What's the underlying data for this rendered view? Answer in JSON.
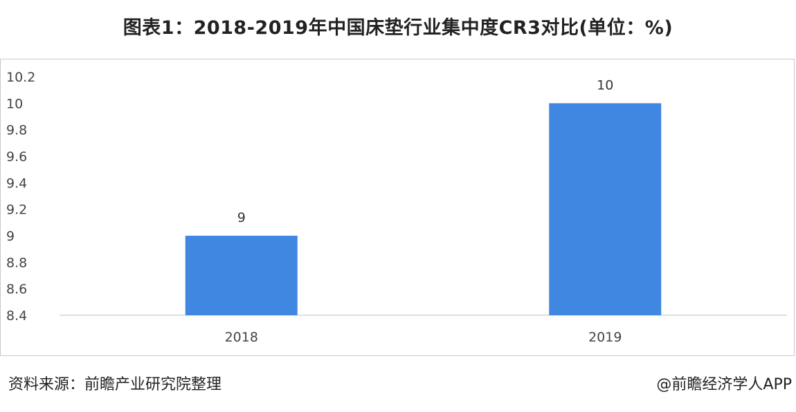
{
  "title": "图表1：2018-2019年中国床垫行业集中度CR3对比(单位：%)",
  "source": "资料来源：前瞻产业研究院整理",
  "credit": "@前瞻经济学人APP",
  "chart_data": {
    "type": "bar",
    "categories": [
      "2018",
      "2019"
    ],
    "values": [
      9,
      10
    ],
    "data_labels": [
      "9",
      "10"
    ],
    "ylim": [
      8.4,
      10.2
    ],
    "yticks": [
      8.4,
      8.6,
      8.8,
      9,
      9.2,
      9.4,
      9.6,
      9.8,
      10,
      10.2
    ],
    "ytick_labels": [
      "8.4",
      "8.6",
      "8.8",
      "9",
      "9.2",
      "9.4",
      "9.6",
      "9.8",
      "10",
      "10.2"
    ],
    "bar_color": "#3f87e0",
    "grid": false,
    "legend": "none"
  }
}
